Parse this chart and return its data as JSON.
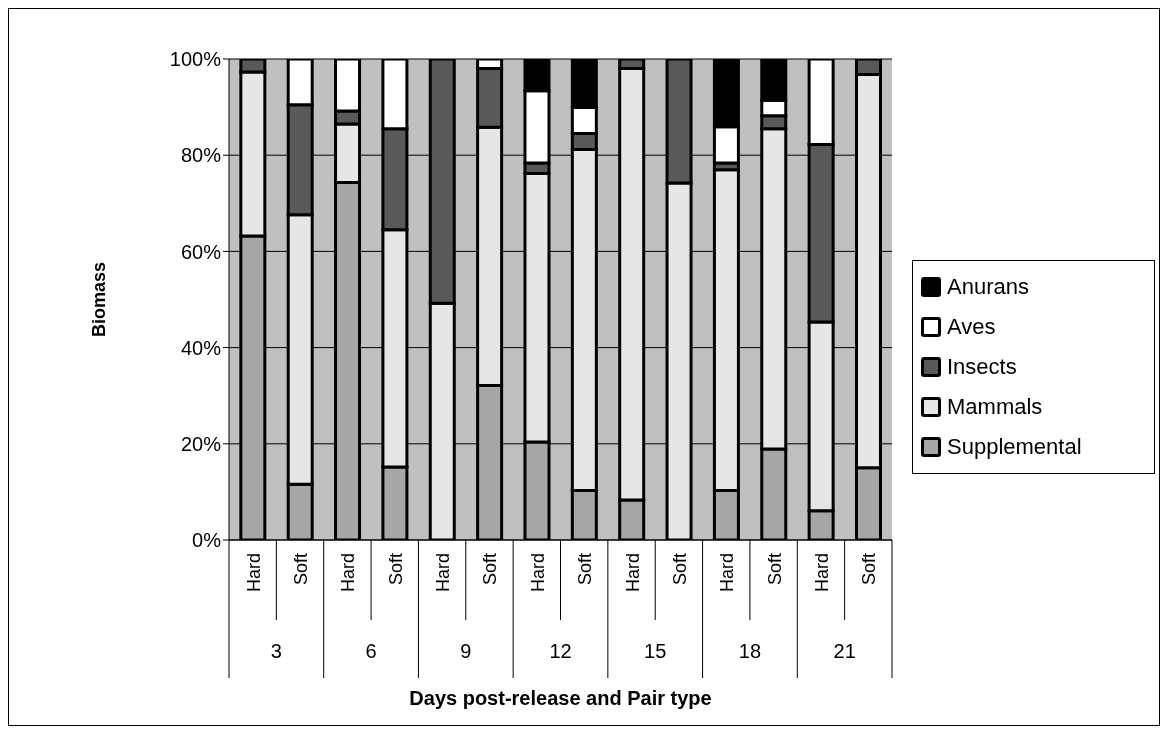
{
  "chart_data": {
    "type": "bar",
    "stacked": true,
    "xlabel": "Days post-release and Pair type",
    "ylabel": "Biomass",
    "categories": [
      "Hard",
      "Soft",
      "Hard",
      "Soft",
      "Hard",
      "Soft",
      "Hard",
      "Soft",
      "Hard",
      "Soft",
      "Hard",
      "Soft",
      "Hard",
      "Soft"
    ],
    "annotations": [
      "3",
      "6",
      "9",
      "12",
      "15",
      "18",
      "21"
    ],
    "series": [
      {
        "name": "Supplemental",
        "color": "#a6a6a6",
        "values": [
          63.2,
          11.6,
          74.3,
          15.2,
          0,
          32.1,
          20.4,
          10.3,
          8.3,
          0,
          10.3,
          18.9,
          6.1,
          15.0
        ]
      },
      {
        "name": "Mammals",
        "color": "#e6e6e6",
        "values": [
          34.1,
          56.0,
          12.2,
          49.3,
          49.2,
          53.7,
          55.8,
          70.9,
          89.7,
          74.2,
          66.7,
          66.6,
          39.2,
          81.8
        ]
      },
      {
        "name": "Insects",
        "color": "#595959",
        "values": [
          2.7,
          22.9,
          2.7,
          21.0,
          50.8,
          12.2,
          2.2,
          3.3,
          2.0,
          25.8,
          1.4,
          2.7,
          36.9,
          3.2
        ]
      },
      {
        "name": "Aves",
        "color": "#ffffff",
        "values": [
          0,
          9.5,
          10.8,
          14.5,
          0,
          2.0,
          15.0,
          5.4,
          0,
          0,
          7.5,
          3.2,
          17.8,
          0
        ]
      },
      {
        "name": "Anurans",
        "color": "#000000",
        "values": [
          0,
          0,
          0,
          0,
          0,
          0,
          6.6,
          10.1,
          0,
          0,
          14.1,
          8.6,
          0,
          0
        ]
      }
    ],
    "ylim": [
      0,
      100
    ],
    "yticks": [
      {
        "value": 0,
        "label": "0%"
      },
      {
        "value": 20,
        "label": "20%"
      },
      {
        "value": 40,
        "label": "40%"
      },
      {
        "value": 60,
        "label": "60%"
      },
      {
        "value": 80,
        "label": "80%"
      },
      {
        "value": 100,
        "label": "100%"
      }
    ],
    "grid": "y",
    "legend": "right"
  }
}
